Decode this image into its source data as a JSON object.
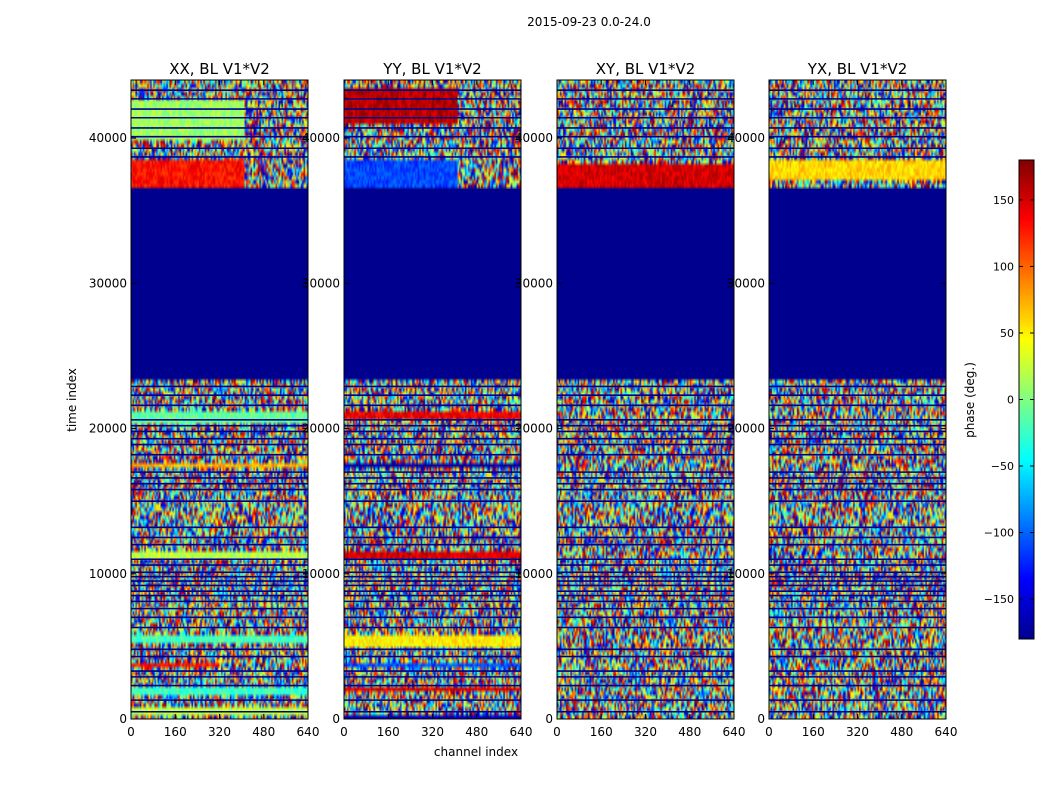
{
  "figure": {
    "suptitle": "2015-09-23 0.0-24.0"
  },
  "chart_data": {
    "type": "heatmap",
    "xlabel": "channel index",
    "ylabel": "time index",
    "xlim": [
      0,
      640
    ],
    "ylim": [
      0,
      44000
    ],
    "xticks": [
      0,
      160,
      320,
      480,
      640
    ],
    "yticks": [
      0,
      10000,
      20000,
      30000,
      40000
    ],
    "panels": [
      {
        "title": "XX, BL V1*V2",
        "bands": [
          {
            "t0": 250,
            "t1": 700,
            "value": 25,
            "ch_end": 640
          },
          {
            "t0": 1700,
            "t1": 2100,
            "value": -25,
            "ch_end": 640
          },
          {
            "t0": 3600,
            "t1": 3900,
            "value": 130,
            "ch_end": 320
          },
          {
            "t0": 5300,
            "t1": 5800,
            "value": -20,
            "ch_end": 640
          },
          {
            "t0": 11100,
            "t1": 11600,
            "value": 20,
            "ch_end": 640
          },
          {
            "t0": 17300,
            "t1": 17700,
            "value": 70,
            "ch_end": 640
          },
          {
            "t0": 20400,
            "t1": 21200,
            "value": -10,
            "ch_end": 640
          },
          {
            "t0": 36500,
            "t1": 38500,
            "value": 130,
            "ch_end": 410
          },
          {
            "t0": 40000,
            "t1": 42500,
            "value": 10,
            "ch_end": 410
          }
        ]
      },
      {
        "title": "YY, BL V1*V2",
        "bands": [
          {
            "t0": 0,
            "t1": 300,
            "value": -160,
            "ch_end": 640
          },
          {
            "t0": 1800,
            "t1": 2100,
            "value": 150,
            "ch_end": 640
          },
          {
            "t0": 3600,
            "t1": 3900,
            "value": -110,
            "ch_end": 640
          },
          {
            "t0": 5000,
            "t1": 5800,
            "value": 50,
            "ch_end": 640
          },
          {
            "t0": 11100,
            "t1": 11600,
            "value": 150,
            "ch_end": 640
          },
          {
            "t0": 17300,
            "t1": 17700,
            "value": -170,
            "ch_end": 640
          },
          {
            "t0": 20500,
            "t1": 21300,
            "value": 140,
            "ch_end": 640
          },
          {
            "t0": 36500,
            "t1": 38500,
            "value": -110,
            "ch_end": 410
          },
          {
            "t0": 41000,
            "t1": 43500,
            "value": 160,
            "ch_end": 410
          }
        ]
      },
      {
        "title": "XY, BL V1*V2",
        "bands": [
          {
            "t0": 36500,
            "t1": 38300,
            "value": 150,
            "ch_end": 640
          }
        ]
      },
      {
        "title": "YX, BL V1*V2",
        "bands": [
          {
            "t0": 37000,
            "t1": 38500,
            "value": 60,
            "ch_end": 640
          }
        ]
      }
    ],
    "flagged_block": {
      "t0": 23500,
      "t1": 36500,
      "value": -180
    },
    "dark_lines": [
      500,
      1300,
      2300,
      2900,
      3300,
      4300,
      4800,
      6300,
      7000,
      7600,
      8100,
      8500,
      8800,
      9200,
      9500,
      9800,
      10100,
      10600,
      11000,
      12000,
      12500,
      13200,
      15000,
      15800,
      16200,
      16600,
      17000,
      18200,
      18900,
      19300,
      19800,
      20200,
      20600,
      21600,
      22300,
      22900,
      23500,
      38700,
      39300,
      40100,
      40700,
      41400,
      42000,
      42700,
      43300
    ],
    "colorbar": {
      "label": "phase (deg.)",
      "range": [
        -180,
        180
      ],
      "ticks": [
        150,
        100,
        50,
        0,
        -50,
        -100,
        -150
      ],
      "tick_labels": [
        "150",
        "100",
        "50",
        "0",
        "−50",
        "−100",
        "−150"
      ],
      "colormap": [
        "#00008f",
        "#0000ff",
        "#0080ff",
        "#00ffff",
        "#80ff80",
        "#ffff00",
        "#ff8000",
        "#ff0000",
        "#800000"
      ]
    }
  }
}
